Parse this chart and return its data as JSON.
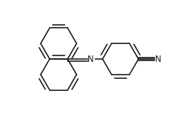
{
  "background_color": "#ffffff",
  "line_color": "#1a1a1a",
  "line_width": 1.2,
  "figsize": [
    2.67,
    1.66
  ],
  "dpi": 100,
  "xlim": [
    0,
    10
  ],
  "ylim": [
    0,
    6.2
  ]
}
